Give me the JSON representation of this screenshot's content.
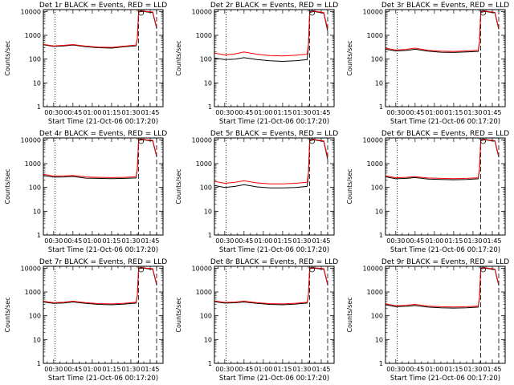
{
  "page": {
    "background": "#ffffff",
    "black_color": "#000000",
    "red_color": "#ff0000"
  },
  "chart_data": [
    {
      "type": "line",
      "title": "Det 1r BLACK = Events, RED = LLD",
      "xlabel": "Start Time (21-Oct-06 00:17:20)",
      "ylabel": "Counts/sec",
      "ylog": true,
      "ylim": [
        1,
        12000
      ],
      "yticks": [
        "1",
        "10",
        "100",
        "1000",
        "10000"
      ],
      "xlim": [
        "00:22",
        "01:55"
      ],
      "xticks": [
        "00:30",
        "00:45",
        "01:00",
        "01:15",
        "01:30",
        "01:45"
      ],
      "vlines": [
        {
          "x": "00:31",
          "style": "dotted"
        },
        {
          "x": "01:36",
          "style": "dashed"
        },
        {
          "x": "01:50",
          "style": "dashed"
        }
      ],
      "series": [
        {
          "name": "Events",
          "color": "#000000",
          "x": [
            "00:22",
            "00:30",
            "00:38",
            "00:45",
            "00:55",
            "01:05",
            "01:15",
            "01:25",
            "01:34",
            "01:35",
            "01:36",
            "01:39",
            "01:47",
            "01:50"
          ],
          "values": [
            400,
            340,
            360,
            390,
            330,
            300,
            290,
            330,
            360,
            700,
            9500,
            10000,
            9000,
            2000
          ]
        },
        {
          "name": "LLD",
          "color": "#ff0000",
          "x": [
            "00:22",
            "00:30",
            "00:38",
            "00:45",
            "00:55",
            "01:05",
            "01:15",
            "01:25",
            "01:34",
            "01:35",
            "01:36",
            "01:39",
            "01:47",
            "01:50"
          ],
          "values": [
            420,
            360,
            380,
            410,
            350,
            320,
            310,
            350,
            390,
            750,
            9800,
            10500,
            9500,
            2200
          ]
        }
      ]
    },
    {
      "type": "line",
      "title": "Det 2r BLACK = Events, RED = LLD",
      "xlabel": "Start Time (21-Oct-06 00:17:20)",
      "ylabel": "Counts/sec",
      "ylog": true,
      "ylim": [
        1,
        12000
      ],
      "yticks": [
        "1",
        "10",
        "100",
        "1000",
        "10000"
      ],
      "xlim": [
        "00:22",
        "01:55"
      ],
      "xticks": [
        "00:30",
        "00:45",
        "01:00",
        "01:15",
        "01:30",
        "01:45"
      ],
      "vlines": [
        {
          "x": "00:31",
          "style": "dotted"
        },
        {
          "x": "01:36",
          "style": "dashed"
        },
        {
          "x": "01:50",
          "style": "dashed"
        }
      ],
      "series": [
        {
          "name": "Events",
          "color": "#000000",
          "x": [
            "00:22",
            "00:30",
            "00:38",
            "00:45",
            "00:55",
            "01:05",
            "01:15",
            "01:25",
            "01:34",
            "01:35",
            "01:36",
            "01:39",
            "01:47",
            "01:50"
          ],
          "values": [
            110,
            95,
            100,
            115,
            95,
            85,
            80,
            85,
            95,
            300,
            9000,
            10000,
            8500,
            1500
          ]
        },
        {
          "name": "LLD",
          "color": "#ff0000",
          "x": [
            "00:22",
            "00:30",
            "00:38",
            "00:45",
            "00:55",
            "01:05",
            "01:15",
            "01:25",
            "01:34",
            "01:35",
            "01:36",
            "01:39",
            "01:47",
            "01:50"
          ],
          "values": [
            180,
            150,
            165,
            200,
            160,
            140,
            135,
            145,
            160,
            400,
            9500,
            10500,
            9000,
            1800
          ]
        }
      ]
    },
    {
      "type": "line",
      "title": "Det 3r BLACK = Events, RED = LLD",
      "xlabel": "Start Time (21-Oct-06 00:17:20)",
      "ylabel": "Counts/sec",
      "ylog": true,
      "ylim": [
        1,
        12000
      ],
      "yticks": [
        "1",
        "10",
        "100",
        "1000",
        "10000"
      ],
      "xlim": [
        "00:22",
        "01:55"
      ],
      "xticks": [
        "00:30",
        "00:45",
        "01:00",
        "01:15",
        "01:30",
        "01:45"
      ],
      "vlines": [
        {
          "x": "00:31",
          "style": "dotted"
        },
        {
          "x": "01:36",
          "style": "dashed"
        },
        {
          "x": "01:50",
          "style": "dashed"
        }
      ],
      "series": [
        {
          "name": "Events",
          "color": "#000000",
          "x": [
            "00:22",
            "00:30",
            "00:38",
            "00:45",
            "00:55",
            "01:05",
            "01:15",
            "01:25",
            "01:34",
            "01:35",
            "01:36",
            "01:39",
            "01:47",
            "01:50"
          ],
          "values": [
            260,
            220,
            230,
            260,
            215,
            195,
            190,
            200,
            210,
            500,
            9000,
            10000,
            8800,
            1800
          ]
        },
        {
          "name": "LLD",
          "color": "#ff0000",
          "x": [
            "00:22",
            "00:30",
            "00:38",
            "00:45",
            "00:55",
            "01:05",
            "01:15",
            "01:25",
            "01:34",
            "01:35",
            "01:36",
            "01:39",
            "01:47",
            "01:50"
          ],
          "values": [
            290,
            240,
            255,
            290,
            235,
            215,
            210,
            220,
            235,
            550,
            9400,
            10400,
            9200,
            2000
          ]
        }
      ]
    },
    {
      "type": "line",
      "title": "Det 4r BLACK = Events, RED = LLD",
      "xlabel": "Start Time (21-Oct-06 00:17:20)",
      "ylabel": "Counts/sec",
      "ylog": true,
      "ylim": [
        1,
        12000
      ],
      "yticks": [
        "1",
        "10",
        "100",
        "1000",
        "10000"
      ],
      "xlim": [
        "00:22",
        "01:55"
      ],
      "xticks": [
        "00:30",
        "00:45",
        "01:00",
        "01:15",
        "01:30",
        "01:45"
      ],
      "vlines": [
        {
          "x": "00:31",
          "style": "dotted"
        },
        {
          "x": "01:36",
          "style": "dashed"
        },
        {
          "x": "01:50",
          "style": "dashed"
        }
      ],
      "series": [
        {
          "name": "Events",
          "color": "#000000",
          "x": [
            "00:22",
            "00:30",
            "00:38",
            "00:45",
            "00:55",
            "01:05",
            "01:15",
            "01:25",
            "01:34",
            "01:35",
            "01:36",
            "01:39",
            "01:47",
            "01:50"
          ],
          "values": [
            320,
            270,
            275,
            290,
            245,
            240,
            235,
            240,
            250,
            600,
            9500,
            10000,
            9000,
            2000
          ]
        },
        {
          "name": "LLD",
          "color": "#ff0000",
          "x": [
            "00:22",
            "00:30",
            "00:38",
            "00:45",
            "00:55",
            "01:05",
            "01:15",
            "01:25",
            "01:34",
            "01:35",
            "01:36",
            "01:39",
            "01:47",
            "01:50"
          ],
          "values": [
            360,
            300,
            305,
            320,
            275,
            265,
            260,
            265,
            280,
            650,
            9800,
            10500,
            9500,
            2200
          ]
        }
      ]
    },
    {
      "type": "line",
      "title": "Det 5r BLACK = Events, RED = LLD",
      "xlabel": "Start Time (21-Oct-06 00:17:20)",
      "ylabel": "Counts/sec",
      "ylog": true,
      "ylim": [
        1,
        12000
      ],
      "yticks": [
        "1",
        "10",
        "100",
        "1000",
        "10000"
      ],
      "xlim": [
        "00:22",
        "01:55"
      ],
      "xticks": [
        "00:30",
        "00:45",
        "01:00",
        "01:15",
        "01:30",
        "01:45"
      ],
      "vlines": [
        {
          "x": "00:31",
          "style": "dotted"
        },
        {
          "x": "01:36",
          "style": "dashed"
        },
        {
          "x": "01:50",
          "style": "dashed"
        }
      ],
      "series": [
        {
          "name": "Events",
          "color": "#000000",
          "x": [
            "00:22",
            "00:30",
            "00:38",
            "00:45",
            "00:55",
            "01:05",
            "01:15",
            "01:25",
            "01:34",
            "01:35",
            "01:36",
            "01:39",
            "01:47",
            "01:50"
          ],
          "values": [
            120,
            100,
            110,
            130,
            105,
            95,
            95,
            100,
            110,
            300,
            9000,
            10000,
            8500,
            1500
          ]
        },
        {
          "name": "LLD",
          "color": "#ff0000",
          "x": [
            "00:22",
            "00:30",
            "00:38",
            "00:45",
            "00:55",
            "01:05",
            "01:15",
            "01:25",
            "01:34",
            "01:35",
            "01:36",
            "01:39",
            "01:47",
            "01:50"
          ],
          "values": [
            180,
            150,
            165,
            190,
            155,
            140,
            140,
            150,
            165,
            400,
            9400,
            10400,
            9000,
            1800
          ]
        }
      ]
    },
    {
      "type": "line",
      "title": "Det 6r BLACK = Events, RED = LLD",
      "xlabel": "Start Time (21-Oct-06 00:17:20)",
      "ylabel": "Counts/sec",
      "ylog": true,
      "ylim": [
        1,
        12000
      ],
      "yticks": [
        "1",
        "10",
        "100",
        "1000",
        "10000"
      ],
      "xlim": [
        "00:22",
        "01:55"
      ],
      "xticks": [
        "00:30",
        "00:45",
        "01:00",
        "01:15",
        "01:30",
        "01:45"
      ],
      "vlines": [
        {
          "x": "00:31",
          "style": "dotted"
        },
        {
          "x": "01:36",
          "style": "dashed"
        },
        {
          "x": "01:50",
          "style": "dashed"
        }
      ],
      "series": [
        {
          "name": "Events",
          "color": "#000000",
          "x": [
            "00:22",
            "00:30",
            "00:38",
            "00:45",
            "00:55",
            "01:05",
            "01:15",
            "01:25",
            "01:34",
            "01:35",
            "01:36",
            "01:39",
            "01:47",
            "01:50"
          ],
          "values": [
            280,
            230,
            240,
            260,
            225,
            215,
            210,
            215,
            230,
            550,
            9200,
            10000,
            8800,
            1900
          ]
        },
        {
          "name": "LLD",
          "color": "#ff0000",
          "x": [
            "00:22",
            "00:30",
            "00:38",
            "00:45",
            "00:55",
            "01:05",
            "01:15",
            "01:25",
            "01:34",
            "01:35",
            "01:36",
            "01:39",
            "01:47",
            "01:50"
          ],
          "values": [
            310,
            255,
            265,
            285,
            250,
            240,
            235,
            240,
            255,
            600,
            9600,
            10400,
            9200,
            2100
          ]
        }
      ]
    },
    {
      "type": "line",
      "title": "Det 7r BLACK = Events, RED = LLD",
      "xlabel": "Start Time (21-Oct-06 00:17:20)",
      "ylabel": "Counts/sec",
      "ylog": true,
      "ylim": [
        1,
        12000
      ],
      "yticks": [
        "1",
        "10",
        "100",
        "1000",
        "10000"
      ],
      "xlim": [
        "00:22",
        "01:55"
      ],
      "xticks": [
        "00:30",
        "00:45",
        "01:00",
        "01:15",
        "01:30",
        "01:45"
      ],
      "vlines": [
        {
          "x": "00:31",
          "style": "dotted"
        },
        {
          "x": "01:36",
          "style": "dashed"
        },
        {
          "x": "01:50",
          "style": "dashed"
        }
      ],
      "series": [
        {
          "name": "Events",
          "color": "#000000",
          "x": [
            "00:22",
            "00:30",
            "00:38",
            "00:45",
            "00:55",
            "01:05",
            "01:15",
            "01:25",
            "01:34",
            "01:35",
            "01:36",
            "01:39",
            "01:47",
            "01:50"
          ],
          "values": [
            380,
            330,
            345,
            380,
            330,
            300,
            290,
            310,
            340,
            700,
            9500,
            10000,
            9000,
            2000
          ]
        },
        {
          "name": "LLD",
          "color": "#ff0000",
          "x": [
            "00:22",
            "00:30",
            "00:38",
            "00:45",
            "00:55",
            "01:05",
            "01:15",
            "01:25",
            "01:34",
            "01:35",
            "01:36",
            "01:39",
            "01:47",
            "01:50"
          ],
          "values": [
            410,
            355,
            370,
            410,
            355,
            325,
            315,
            335,
            370,
            760,
            9800,
            10500,
            9500,
            2200
          ]
        }
      ]
    },
    {
      "type": "line",
      "title": "Det 8r BLACK = Events, RED = LLD",
      "xlabel": "Start Time (21-Oct-06 00:17:20)",
      "ylabel": "Counts/sec",
      "ylog": true,
      "ylim": [
        1,
        12000
      ],
      "yticks": [
        "1",
        "10",
        "100",
        "1000",
        "10000"
      ],
      "xlim": [
        "00:22",
        "01:55"
      ],
      "xticks": [
        "00:30",
        "00:45",
        "01:00",
        "01:15",
        "01:30",
        "01:45"
      ],
      "vlines": [
        {
          "x": "00:31",
          "style": "dotted"
        },
        {
          "x": "01:36",
          "style": "dashed"
        },
        {
          "x": "01:50",
          "style": "dashed"
        }
      ],
      "series": [
        {
          "name": "Events",
          "color": "#000000",
          "x": [
            "00:22",
            "00:30",
            "00:38",
            "00:45",
            "00:55",
            "01:05",
            "01:15",
            "01:25",
            "01:34",
            "01:35",
            "01:36",
            "01:39",
            "01:47",
            "01:50"
          ],
          "values": [
            390,
            340,
            350,
            380,
            330,
            300,
            290,
            310,
            340,
            700,
            9500,
            10000,
            9000,
            2000
          ]
        },
        {
          "name": "LLD",
          "color": "#ff0000",
          "x": [
            "00:22",
            "00:30",
            "00:38",
            "00:45",
            "00:55",
            "01:05",
            "01:15",
            "01:25",
            "01:34",
            "01:35",
            "01:36",
            "01:39",
            "01:47",
            "01:50"
          ],
          "values": [
            420,
            365,
            375,
            410,
            355,
            325,
            315,
            335,
            370,
            760,
            9800,
            10500,
            9500,
            2200
          ]
        }
      ]
    },
    {
      "type": "line",
      "title": "Det 9r BLACK = Events, RED = LLD",
      "xlabel": "Start Time (21-Oct-06 00:17:20)",
      "ylabel": "Counts/sec",
      "ylog": true,
      "ylim": [
        1,
        12000
      ],
      "yticks": [
        "1",
        "10",
        "100",
        "1000",
        "10000"
      ],
      "xlim": [
        "00:22",
        "01:55"
      ],
      "xticks": [
        "00:30",
        "00:45",
        "01:00",
        "01:15",
        "01:30",
        "01:45"
      ],
      "vlines": [
        {
          "x": "00:31",
          "style": "dotted"
        },
        {
          "x": "01:36",
          "style": "dashed"
        },
        {
          "x": "01:50",
          "style": "dashed"
        }
      ],
      "series": [
        {
          "name": "Events",
          "color": "#000000",
          "x": [
            "00:22",
            "00:30",
            "00:38",
            "00:45",
            "00:55",
            "01:05",
            "01:15",
            "01:25",
            "01:34",
            "01:35",
            "01:36",
            "01:39",
            "01:47",
            "01:50"
          ],
          "values": [
            290,
            240,
            250,
            270,
            230,
            215,
            210,
            215,
            230,
            560,
            9200,
            10000,
            8800,
            1900
          ]
        },
        {
          "name": "LLD",
          "color": "#ff0000",
          "x": [
            "00:22",
            "00:30",
            "00:38",
            "00:45",
            "00:55",
            "01:05",
            "01:15",
            "01:25",
            "01:34",
            "01:35",
            "01:36",
            "01:39",
            "01:47",
            "01:50"
          ],
          "values": [
            320,
            265,
            275,
            300,
            255,
            240,
            235,
            240,
            255,
            610,
            9600,
            10400,
            9200,
            2100
          ]
        }
      ]
    }
  ]
}
